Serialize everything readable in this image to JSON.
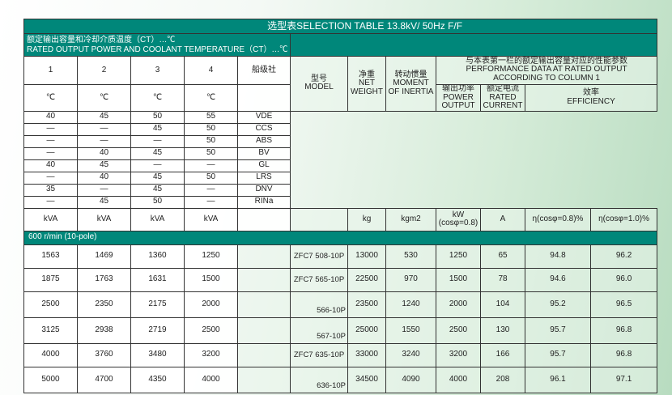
{
  "title": "选型表SELECTION TABLE 13.8kV/ 50Hz  F/F",
  "rated_header": {
    "cn": "额定输出容量和冷却介质温度（CT）…℃",
    "en": "RATED OUTPUT POWER AND COOLANT TEMPERATURE（CT）…℃"
  },
  "columns": [
    "1",
    "2",
    "3",
    "4"
  ],
  "class_label": "船级社",
  "deg": "℃",
  "perf_header": {
    "cn": "与本表第一栏的额定输出容量对应的性能参数",
    "en1": "PERFORMANCE DATA AT RATED OUTPUT",
    "en2": "ACCORDING TO COLUMN 1"
  },
  "model": {
    "cn": "型号",
    "en": "MODEL"
  },
  "weight": {
    "cn": "净重",
    "en1": "NET",
    "en2": "WEIGHT",
    "unit": "kg"
  },
  "inertia": {
    "cn": "转动惯量",
    "en1": "MOMENT",
    "en2": "OF INERTIA",
    "unit": "kgm2"
  },
  "power": {
    "cn": "输出功率",
    "en1": "POWER",
    "en2": "OUTPUT",
    "unit1": "kW",
    "unit2": "(cosφ=0.8)"
  },
  "current": {
    "cn": "额定电流",
    "en1": "RATED",
    "en2": "CURRENT",
    "unit": "A"
  },
  "efficiency": {
    "cn": "效率",
    "en": "EFFICIENCY",
    "unit1": "η(cosφ=0.8)%",
    "unit2": "η(cosφ=1.0)%"
  },
  "class_rows": [
    [
      "40",
      "45",
      "50",
      "55",
      "VDE"
    ],
    [
      "—",
      "—",
      "45",
      "50",
      "CCS"
    ],
    [
      "—",
      "—",
      "—",
      "50",
      "ABS"
    ],
    [
      "—",
      "40",
      "45",
      "50",
      "BV"
    ],
    [
      "40",
      "45",
      "—",
      "—",
      "GL"
    ],
    [
      "—",
      "40",
      "45",
      "50",
      "LRS"
    ],
    [
      "35",
      "—",
      "45",
      "—",
      "DNV"
    ],
    [
      "—",
      "45",
      "50",
      "—",
      "RINa"
    ]
  ],
  "kva": "kVA",
  "section": "600 r/min (10-pole)",
  "data_rows": [
    [
      "1563",
      "1469",
      "1360",
      "1250",
      "ZFC7 508-10P",
      "13000",
      "530",
      "1250",
      "65",
      "94.8",
      "96.2"
    ],
    [
      "1875",
      "1763",
      "1631",
      "1500",
      "ZFC7 565-10P",
      "22500",
      "970",
      "1500",
      "78",
      "94.6",
      "96.0"
    ],
    [
      "2500",
      "2350",
      "2175",
      "2000",
      "566-10P",
      "23500",
      "1240",
      "2000",
      "104",
      "95.2",
      "96.5"
    ],
    [
      "3125",
      "2938",
      "2719",
      "2500",
      "567-10P",
      "25000",
      "1550",
      "2500",
      "130",
      "95.7",
      "96.8"
    ],
    [
      "4000",
      "3760",
      "3480",
      "3200",
      "ZFC7 635-10P",
      "33000",
      "3240",
      "3200",
      "166",
      "95.7",
      "96.8"
    ],
    [
      "5000",
      "4700",
      "4350",
      "4000",
      "636-10P",
      "34500",
      "4090",
      "4000",
      "208",
      "96.1",
      "97.1"
    ]
  ]
}
